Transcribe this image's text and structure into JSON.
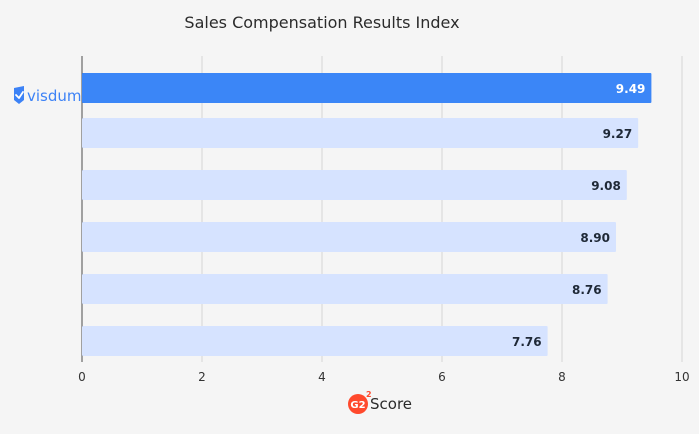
{
  "chart_data": {
    "type": "bar",
    "orientation": "horizontal",
    "title": "Sales Compensation Results Index",
    "xlabel": "Score",
    "xlim": [
      0,
      10
    ],
    "xticks": [
      0,
      2,
      4,
      6,
      8,
      10
    ],
    "categories": [
      "visdum",
      "",
      "",
      "",
      "",
      ""
    ],
    "values": [
      9.49,
      9.27,
      9.08,
      8.9,
      8.76,
      7.76
    ],
    "value_labels": [
      "9.49",
      "9.27",
      "9.08",
      "8.90",
      "8.76",
      "7.76"
    ],
    "grid": true,
    "highlight_index": 0,
    "highlight_color": "#3b86f7",
    "bar_color": "#d6e3ff",
    "brand_logo_text": "visdum",
    "xlabel_logo": "G2",
    "xlabel_logo_superscript": "2"
  }
}
